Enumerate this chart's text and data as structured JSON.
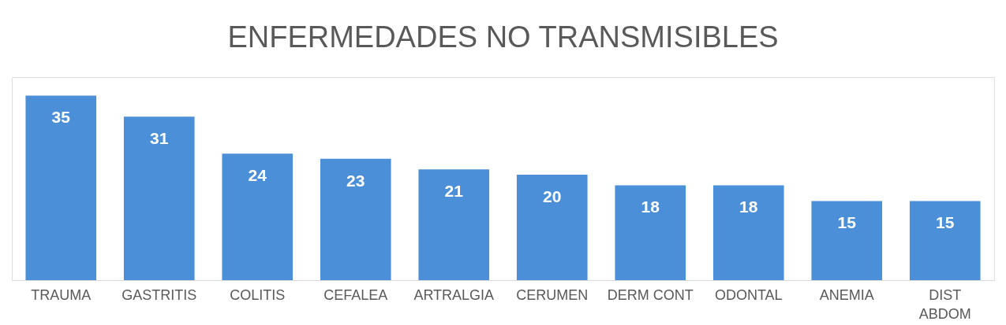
{
  "chart_data": {
    "type": "bar",
    "title": "ENFERMEDADES NO TRANSMISIBLES",
    "categories": [
      "TRAUMA",
      "GASTRITIS",
      "COLITIS",
      "CEFALEA",
      "ARTRALGIA",
      "CERUMEN",
      "DERM CONT",
      "ODONTAL",
      "ANEMIA",
      "DIST ABDOM"
    ],
    "values": [
      35,
      31,
      24,
      23,
      21,
      20,
      18,
      18,
      15,
      15
    ],
    "color": "#4a8fd8",
    "data_labels": true,
    "grid": false
  }
}
